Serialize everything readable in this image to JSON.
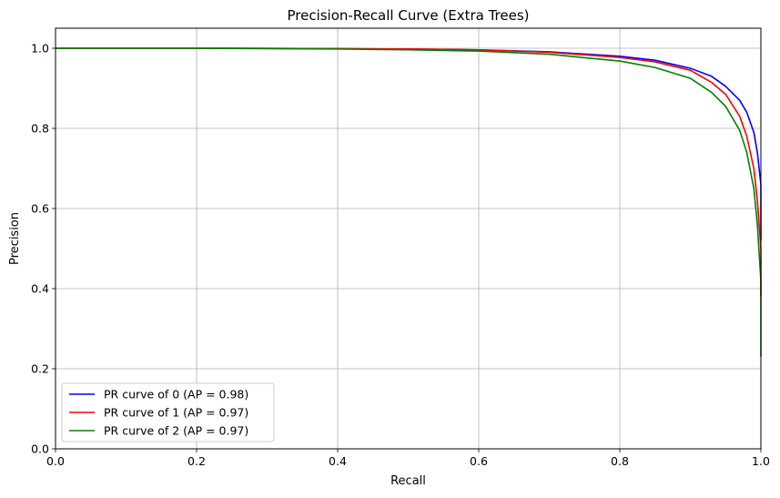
{
  "chart_data": {
    "type": "line",
    "title": "Precision-Recall Curve (Extra Trees)",
    "xlabel": "Recall",
    "ylabel": "Precision",
    "xlim": [
      0.0,
      1.0
    ],
    "ylim": [
      0.0,
      1.05
    ],
    "xticks": [
      "0.0",
      "0.2",
      "0.4",
      "0.6",
      "0.8",
      "1.0"
    ],
    "yticks": [
      "0.0",
      "0.2",
      "0.4",
      "0.6",
      "0.8",
      "1.0"
    ],
    "grid": true,
    "legend_position": "lower-left",
    "series": [
      {
        "name": "PR curve of 0 (AP = 0.98)",
        "color": "#0000ff",
        "x": [
          0.0,
          0.2,
          0.4,
          0.5,
          0.6,
          0.7,
          0.8,
          0.85,
          0.9,
          0.93,
          0.95,
          0.97,
          0.98,
          0.99,
          0.995,
          1.0,
          1.0
        ],
        "y": [
          1.0,
          1.0,
          0.999,
          0.998,
          0.996,
          0.991,
          0.98,
          0.97,
          0.95,
          0.93,
          0.905,
          0.87,
          0.84,
          0.79,
          0.74,
          0.66,
          0.52
        ]
      },
      {
        "name": "PR curve of 1 (AP = 0.97)",
        "color": "#ff0000",
        "x": [
          0.0,
          0.2,
          0.4,
          0.5,
          0.6,
          0.7,
          0.8,
          0.85,
          0.9,
          0.93,
          0.95,
          0.97,
          0.98,
          0.99,
          0.995,
          1.0,
          1.0
        ],
        "y": [
          1.0,
          1.0,
          0.999,
          0.998,
          0.996,
          0.99,
          0.977,
          0.966,
          0.945,
          0.915,
          0.885,
          0.83,
          0.78,
          0.7,
          0.62,
          0.5,
          0.38
        ]
      },
      {
        "name": "PR curve of 2 (AP = 0.97)",
        "color": "#008000",
        "x": [
          0.0,
          0.2,
          0.4,
          0.5,
          0.6,
          0.7,
          0.8,
          0.85,
          0.9,
          0.93,
          0.95,
          0.97,
          0.98,
          0.99,
          0.995,
          1.0,
          1.0
        ],
        "y": [
          1.0,
          1.0,
          0.998,
          0.996,
          0.993,
          0.985,
          0.968,
          0.952,
          0.925,
          0.89,
          0.855,
          0.795,
          0.74,
          0.65,
          0.56,
          0.42,
          0.23
        ]
      }
    ]
  }
}
